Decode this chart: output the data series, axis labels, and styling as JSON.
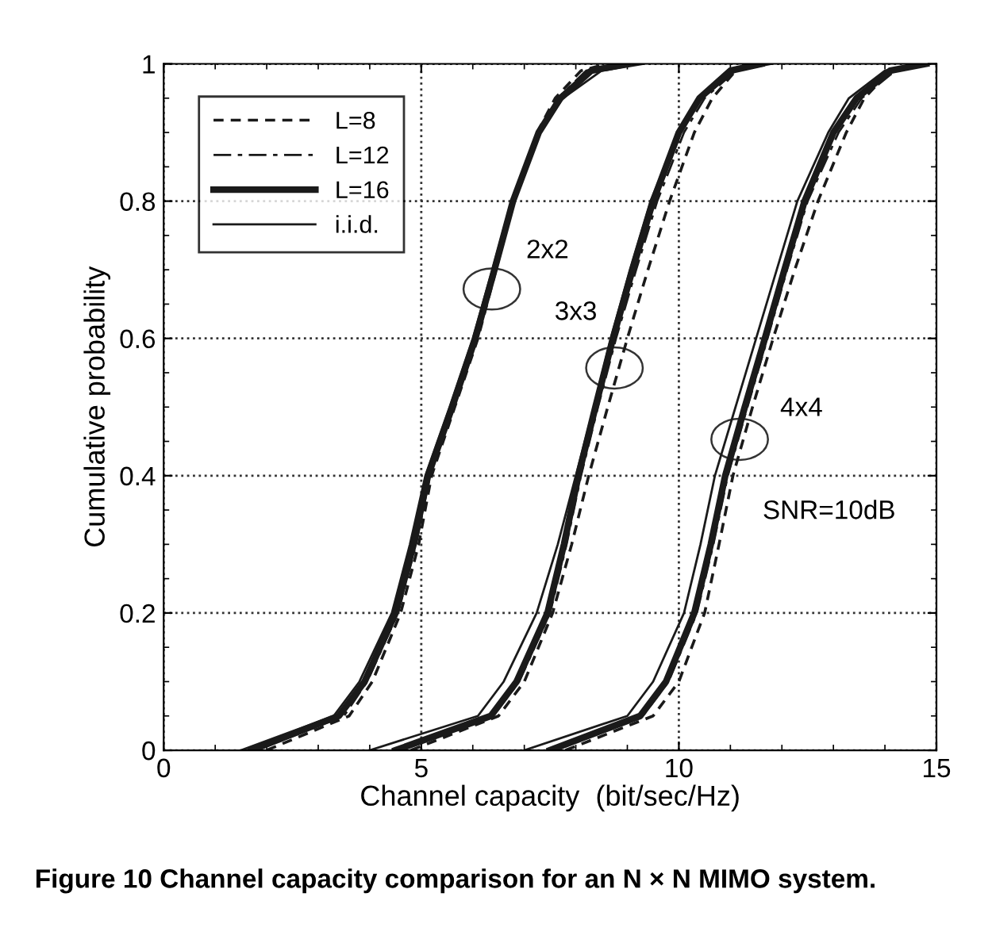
{
  "chart_data": {
    "type": "line",
    "xlabel": "Channel capacity  (bit/sec/Hz)",
    "ylabel": "Cumulative probability",
    "xlim": [
      0,
      15
    ],
    "ylim": [
      0,
      1
    ],
    "xticks": [
      0,
      5,
      10,
      15
    ],
    "yticks": [
      0,
      0.2,
      0.4,
      0.6,
      0.8,
      1
    ],
    "grid": true,
    "legend": "top left",
    "series": [
      {
        "name": "L=8",
        "color": "#1a1a1a",
        "line_style": "dashed",
        "x": [
          2.0,
          3.6,
          4.05,
          4.6,
          4.95,
          5.2,
          5.65,
          6.1,
          6.45,
          6.8,
          7.25,
          7.6,
          8.1,
          8.6
        ],
        "values": [
          0,
          0.05,
          0.1,
          0.2,
          0.3,
          0.4,
          0.5,
          0.6,
          0.7,
          0.8,
          0.9,
          0.95,
          0.99,
          1
        ]
      },
      {
        "name": "L=12",
        "color": "#1a1a1a",
        "line_style": "dashdot",
        "x": [
          1.8,
          3.5,
          3.95,
          4.55,
          4.9,
          5.17,
          5.62,
          6.08,
          6.44,
          6.8,
          7.27,
          7.65,
          8.2,
          8.8
        ],
        "values": [
          0,
          0.05,
          0.1,
          0.2,
          0.3,
          0.4,
          0.5,
          0.6,
          0.7,
          0.8,
          0.9,
          0.95,
          0.99,
          1
        ]
      },
      {
        "name": "L=16",
        "color": "#1a1a1a",
        "line_style": "solid",
        "x": [
          1.7,
          3.4,
          3.9,
          4.5,
          4.85,
          5.13,
          5.6,
          6.05,
          6.42,
          6.78,
          7.28,
          7.7,
          8.3,
          9.0
        ],
        "values": [
          0,
          0.05,
          0.1,
          0.2,
          0.3,
          0.4,
          0.5,
          0.6,
          0.7,
          0.8,
          0.9,
          0.95,
          0.99,
          1
        ]
      },
      {
        "name": "i.i.d.",
        "color": "#1a1a1a",
        "line_style": "solid",
        "x": [
          1.5,
          3.3,
          3.8,
          4.43,
          4.78,
          5.08,
          5.55,
          6.0,
          6.38,
          6.75,
          7.3,
          7.75,
          8.5,
          9.3
        ],
        "values": [
          0,
          0.05,
          0.1,
          0.2,
          0.3,
          0.4,
          0.5,
          0.6,
          0.7,
          0.8,
          0.9,
          0.95,
          0.99,
          1
        ]
      },
      {
        "color": "#1a1a1a",
        "line_style": "dashed",
        "x": [
          4.8,
          6.5,
          7.0,
          7.55,
          7.92,
          8.25,
          8.62,
          9.0,
          9.4,
          9.82,
          10.3,
          10.65,
          11.1,
          11.5
        ],
        "values": [
          0,
          0.05,
          0.1,
          0.2,
          0.3,
          0.4,
          0.5,
          0.6,
          0.7,
          0.8,
          0.9,
          0.95,
          0.99,
          1
        ]
      },
      {
        "color": "#1a1a1a",
        "line_style": "dashdot",
        "x": [
          4.6,
          6.4,
          6.9,
          7.5,
          7.82,
          8.1,
          8.43,
          8.78,
          9.17,
          9.58,
          10.1,
          10.5,
          11.1,
          11.7
        ],
        "values": [
          0,
          0.05,
          0.1,
          0.2,
          0.3,
          0.4,
          0.5,
          0.6,
          0.7,
          0.8,
          0.9,
          0.95,
          0.99,
          1
        ]
      },
      {
        "color": "#1a1a1a",
        "line_style": "solid",
        "x": [
          4.5,
          6.35,
          6.85,
          7.45,
          7.77,
          8.05,
          8.38,
          8.72,
          9.1,
          9.5,
          10.0,
          10.4,
          11.0,
          11.6
        ],
        "values": [
          0,
          0.05,
          0.1,
          0.2,
          0.3,
          0.4,
          0.5,
          0.6,
          0.7,
          0.8,
          0.9,
          0.95,
          0.99,
          1
        ]
      },
      {
        "color": "#1a1a1a",
        "line_style": "solid",
        "x": [
          4.0,
          6.1,
          6.6,
          7.24,
          7.65,
          8.0,
          8.35,
          8.68,
          9.05,
          9.45,
          10.0,
          10.45,
          11.1,
          11.8
        ],
        "values": [
          0,
          0.05,
          0.1,
          0.2,
          0.3,
          0.4,
          0.5,
          0.6,
          0.7,
          0.8,
          0.9,
          0.95,
          0.99,
          1
        ]
      },
      {
        "color": "#1a1a1a",
        "line_style": "dashed",
        "x": [
          7.8,
          9.5,
          10.0,
          10.5,
          10.78,
          11.05,
          11.43,
          11.83,
          12.25,
          12.7,
          13.25,
          13.6,
          14.1,
          14.6
        ],
        "values": [
          0,
          0.05,
          0.1,
          0.2,
          0.3,
          0.4,
          0.5,
          0.6,
          0.7,
          0.8,
          0.9,
          0.95,
          0.99,
          1
        ]
      },
      {
        "color": "#1a1a1a",
        "line_style": "dashdot",
        "x": [
          7.6,
          9.3,
          9.8,
          10.35,
          10.67,
          10.95,
          11.33,
          11.72,
          12.1,
          12.5,
          13.1,
          13.55,
          14.2,
          14.9
        ],
        "values": [
          0,
          0.05,
          0.1,
          0.2,
          0.3,
          0.4,
          0.5,
          0.6,
          0.7,
          0.8,
          0.9,
          0.95,
          0.99,
          1
        ]
      },
      {
        "color": "#1a1a1a",
        "line_style": "solid",
        "x": [
          7.5,
          9.25,
          9.75,
          10.3,
          10.62,
          10.9,
          11.28,
          11.67,
          12.05,
          12.44,
          13.0,
          13.45,
          14.1,
          14.8
        ],
        "values": [
          0,
          0.05,
          0.1,
          0.2,
          0.3,
          0.4,
          0.5,
          0.6,
          0.7,
          0.8,
          0.9,
          0.95,
          0.99,
          1
        ]
      },
      {
        "color": "#1a1a1a",
        "line_style": "solid",
        "x": [
          7.0,
          9.0,
          9.5,
          10.1,
          10.42,
          10.7,
          11.1,
          11.5,
          11.9,
          12.3,
          12.9,
          13.3,
          14.0,
          14.6
        ],
        "values": [
          0,
          0.05,
          0.1,
          0.2,
          0.3,
          0.4,
          0.5,
          0.6,
          0.7,
          0.8,
          0.9,
          0.95,
          0.99,
          1
        ]
      }
    ],
    "annotations": [
      {
        "text": "2x2",
        "x": 6.37,
        "y": 0.672
      },
      {
        "text": "3x3",
        "x": 8.75,
        "y": 0.557
      },
      {
        "text": "4x4",
        "x": 11.18,
        "y": 0.453
      },
      "SNR=10dB",
      "Figure 10 Channel capacity comparison for an N × N MIMO system."
    ]
  }
}
